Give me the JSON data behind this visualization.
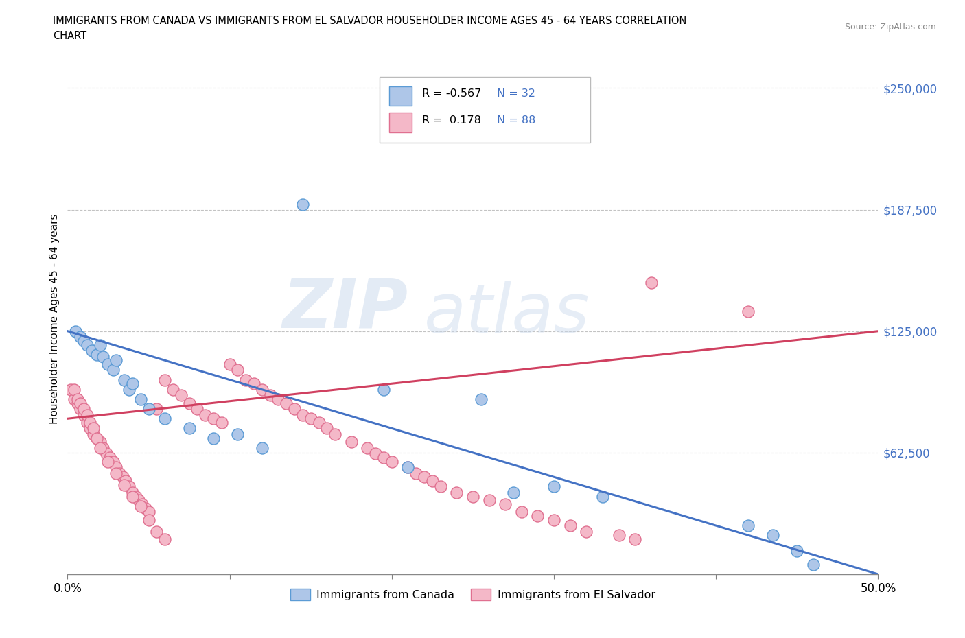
{
  "title_line1": "IMMIGRANTS FROM CANADA VS IMMIGRANTS FROM EL SALVADOR HOUSEHOLDER INCOME AGES 45 - 64 YEARS CORRELATION",
  "title_line2": "CHART",
  "source_text": "Source: ZipAtlas.com",
  "ylabel": "Householder Income Ages 45 - 64 years",
  "xlim": [
    0.0,
    0.5
  ],
  "ylim": [
    0,
    262500
  ],
  "yticks": [
    0,
    62500,
    125000,
    187500,
    250000
  ],
  "ytick_labels": [
    "",
    "$62,500",
    "$125,000",
    "$187,500",
    "$250,000"
  ],
  "xticks": [
    0.0,
    0.1,
    0.2,
    0.3,
    0.4,
    0.5
  ],
  "xtick_labels": [
    "0.0%",
    "",
    "",
    "",
    "",
    "50.0%"
  ],
  "watermark_zip": "ZIP",
  "watermark_atlas": "atlas",
  "canada_color": "#aec6e8",
  "canada_edge_color": "#5b9bd5",
  "salvador_color": "#f4b8c8",
  "salvador_edge_color": "#e07090",
  "canada_R": -0.567,
  "canada_N": 32,
  "salvador_R": 0.178,
  "salvador_N": 88,
  "trend_canada_color": "#4472c4",
  "trend_salvador_color": "#d04060",
  "legend_label_canada": "Immigrants from Canada",
  "legend_label_salvador": "Immigrants from El Salvador",
  "canada_x": [
    0.005,
    0.008,
    0.01,
    0.012,
    0.015,
    0.018,
    0.02,
    0.022,
    0.025,
    0.028,
    0.03,
    0.035,
    0.038,
    0.04,
    0.045,
    0.05,
    0.06,
    0.075,
    0.09,
    0.105,
    0.12,
    0.145,
    0.195,
    0.21,
    0.255,
    0.275,
    0.3,
    0.33,
    0.42,
    0.435,
    0.45,
    0.46
  ],
  "canada_y": [
    125000,
    122000,
    120000,
    118000,
    115000,
    113000,
    118000,
    112000,
    108000,
    105000,
    110000,
    100000,
    95000,
    98000,
    90000,
    85000,
    80000,
    75000,
    70000,
    72000,
    65000,
    190000,
    95000,
    55000,
    90000,
    42000,
    45000,
    40000,
    25000,
    20000,
    12000,
    5000
  ],
  "salvador_x": [
    0.002,
    0.004,
    0.006,
    0.008,
    0.01,
    0.012,
    0.014,
    0.016,
    0.018,
    0.02,
    0.022,
    0.024,
    0.026,
    0.028,
    0.03,
    0.032,
    0.034,
    0.036,
    0.038,
    0.04,
    0.042,
    0.044,
    0.046,
    0.048,
    0.05,
    0.055,
    0.06,
    0.065,
    0.07,
    0.075,
    0.08,
    0.085,
    0.09,
    0.095,
    0.1,
    0.105,
    0.11,
    0.115,
    0.12,
    0.125,
    0.13,
    0.135,
    0.14,
    0.145,
    0.15,
    0.155,
    0.16,
    0.165,
    0.175,
    0.185,
    0.19,
    0.195,
    0.2,
    0.21,
    0.215,
    0.22,
    0.225,
    0.23,
    0.24,
    0.25,
    0.26,
    0.27,
    0.28,
    0.29,
    0.3,
    0.31,
    0.32,
    0.34,
    0.35,
    0.36,
    0.004,
    0.006,
    0.008,
    0.01,
    0.012,
    0.014,
    0.016,
    0.018,
    0.02,
    0.025,
    0.03,
    0.035,
    0.04,
    0.045,
    0.05,
    0.055,
    0.06,
    0.42
  ],
  "salvador_y": [
    95000,
    90000,
    88000,
    85000,
    82000,
    78000,
    75000,
    72000,
    70000,
    68000,
    65000,
    62000,
    60000,
    58000,
    55000,
    52000,
    50000,
    48000,
    45000,
    42000,
    40000,
    38000,
    36000,
    34000,
    32000,
    85000,
    100000,
    95000,
    92000,
    88000,
    85000,
    82000,
    80000,
    78000,
    108000,
    105000,
    100000,
    98000,
    95000,
    92000,
    90000,
    88000,
    85000,
    82000,
    80000,
    78000,
    75000,
    72000,
    68000,
    65000,
    62000,
    60000,
    58000,
    55000,
    52000,
    50000,
    48000,
    45000,
    42000,
    40000,
    38000,
    36000,
    32000,
    30000,
    28000,
    25000,
    22000,
    20000,
    18000,
    150000,
    95000,
    90000,
    88000,
    85000,
    82000,
    78000,
    75000,
    70000,
    65000,
    58000,
    52000,
    46000,
    40000,
    35000,
    28000,
    22000,
    18000,
    135000
  ]
}
